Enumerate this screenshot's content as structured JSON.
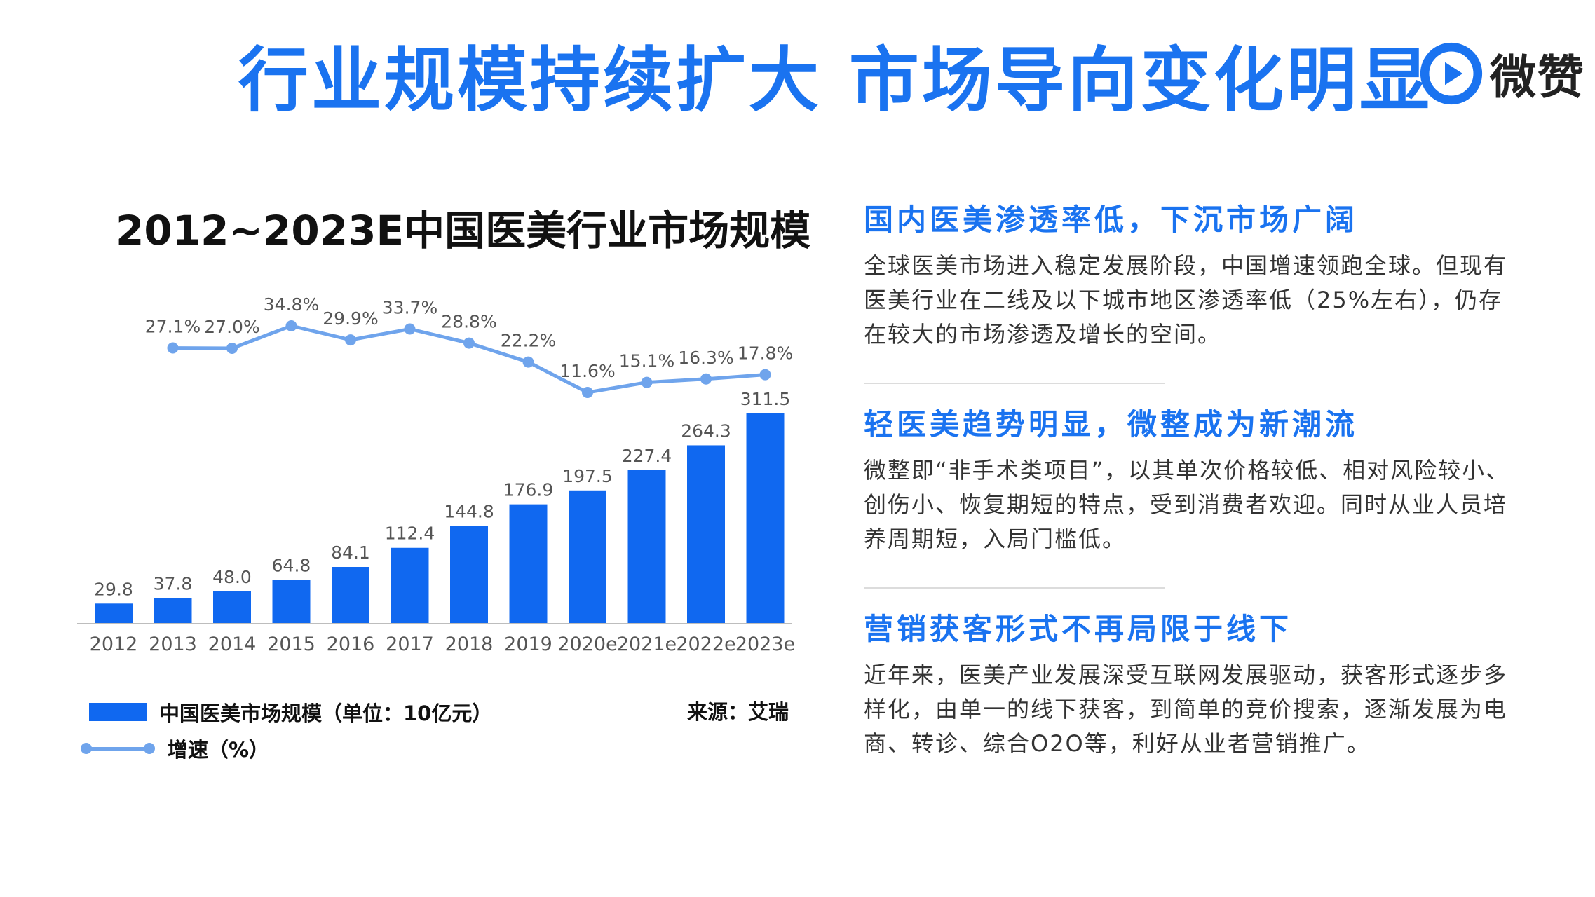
{
  "header": {
    "title": "行业规模持续扩大  市场导向变化明显",
    "logo_text": "微赞",
    "logo_icon": "play-icon",
    "accent_color": "#1a73f0"
  },
  "chart_data": {
    "type": "bar",
    "title": "2012~2023E中国医美行业市场规模",
    "categories": [
      "2012",
      "2013",
      "2014",
      "2015",
      "2016",
      "2017",
      "2018",
      "2019",
      "2020e",
      "2021e",
      "2022e",
      "2023e"
    ],
    "series": [
      {
        "name": "中国医美市场规模（单位：10亿元）",
        "type": "bar",
        "color": "#1068f0",
        "values": [
          29.8,
          37.8,
          48.0,
          64.8,
          84.1,
          112.4,
          144.8,
          176.9,
          197.5,
          227.4,
          264.3,
          311.5
        ],
        "labels": [
          "29.8",
          "37.8",
          "48.0",
          "64.8",
          "84.1",
          "112.4",
          "144.8",
          "176.9",
          "197.5",
          "227.4",
          "264.3",
          "311.5"
        ]
      },
      {
        "name": "增速（%）",
        "type": "line",
        "color": "#6fa4ec",
        "values": [
          null,
          27.1,
          27.0,
          34.8,
          29.9,
          33.7,
          28.8,
          22.2,
          11.6,
          15.1,
          16.3,
          17.8
        ],
        "labels": [
          "",
          "27.1%",
          "27.0%",
          "34.8%",
          "29.9%",
          "33.7%",
          "28.8%",
          "22.2%",
          "11.6%",
          "15.1%",
          "16.3%",
          "17.8%"
        ]
      }
    ],
    "ylim": [
      0,
      311.5
    ],
    "growth_ylim": [
      11.6,
      34.8
    ],
    "grid": false,
    "legend_position": "bottom-left",
    "source": "来源：艾瑞"
  },
  "sections": [
    {
      "title": "国内医美渗透率低，下沉市场广阔",
      "body": "全球医美市场进入稳定发展阶段，中国增速领跑全球。但现有医美行业在二线及以下城市地区渗透率低（25%左右），仍存在较大的市场渗透及增长的空间。"
    },
    {
      "title": "轻医美趋势明显，微整成为新潮流",
      "body": "微整即“非手术类项目”，以其单次价格较低、相对风险较小、创伤小、恢复期短的特点，受到消费者欢迎。同时从业人员培养周期短，入局门槛低。"
    },
    {
      "title": "营销获客形式不再局限于线下",
      "body": "近年来，医美产业发展深受互联网发展驱动，获客形式逐步多样化，由单一的线下获客，到简单的竞价搜索，逐渐发展为电商、转诊、综合O2O等，利好从业者营销推广。"
    }
  ]
}
